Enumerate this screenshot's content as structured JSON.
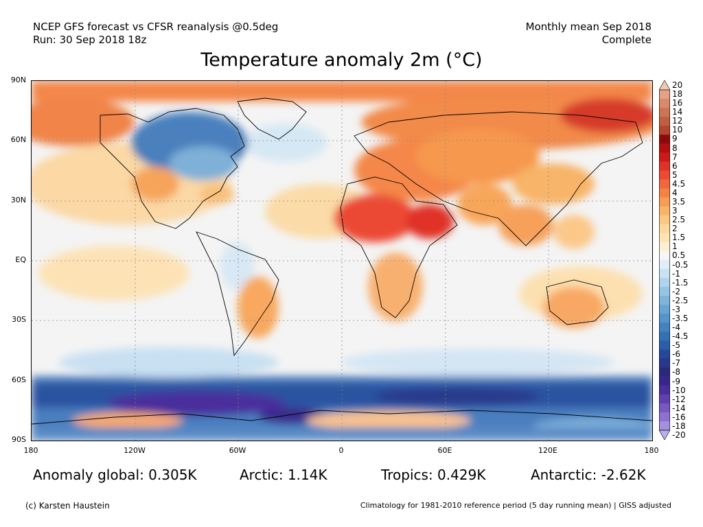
{
  "header": {
    "line1_left": "NCEP GFS forecast vs CFSR reanalysis @0.5deg",
    "line2_left": "Run: 30 Sep 2018 18z",
    "line1_right": "Monthly mean Sep 2018",
    "line2_right": "Complete"
  },
  "title": "Temperature anomaly 2m (°C)",
  "axes": {
    "lat_labels": [
      "90N",
      "60N",
      "30N",
      "EQ",
      "30S",
      "60S",
      "90S"
    ],
    "lon_labels": [
      "180",
      "120W",
      "60W",
      "0",
      "60E",
      "120E",
      "180"
    ]
  },
  "colorbar": {
    "labels": [
      "20",
      "18",
      "16",
      "14",
      "12",
      "10",
      "9",
      "8",
      "7",
      "6",
      "5",
      "4.5",
      "4",
      "3.5",
      "3",
      "2.5",
      "2",
      "1.5",
      "1",
      "0.5",
      "-0.5",
      "-1",
      "-1.5",
      "-2",
      "-2.5",
      "-3",
      "-3.5",
      "-4",
      "-4.5",
      "-5",
      "-6",
      "-7",
      "-8",
      "-9",
      "-10",
      "-12",
      "-14",
      "-16",
      "-18",
      "-20"
    ],
    "colors": [
      "#f0c8b0",
      "#e2a286",
      "#d88a6c",
      "#cc7556",
      "#c05e42",
      "#b04630",
      "#8e0a0a",
      "#b21010",
      "#cc1a18",
      "#e03228",
      "#ec4a34",
      "#f2663c",
      "#f48244",
      "#f69c54",
      "#f8b468",
      "#fac884",
      "#fcd89c",
      "#fde4b4",
      "#fdf0d2",
      "#f6f6f6",
      "#e0eef8",
      "#c8e2f2",
      "#b0d4ec",
      "#96c4e4",
      "#7eb4da",
      "#68a4d2",
      "#5494c8",
      "#4282be",
      "#3470b2",
      "#2a5ea8",
      "#26489a",
      "#28388a",
      "#2a2a7c",
      "#38268a",
      "#4a2e9c",
      "#6040ae",
      "#7658c0",
      "#8c72d0",
      "#a490de",
      "#bcaeea"
    ]
  },
  "stats": {
    "global": "Anomaly global: 0.305K",
    "arctic": "Arctic: 1.14K",
    "tropics": "Tropics: 0.429K",
    "antarctic": "Antarctic: -2.62K"
  },
  "footer": {
    "credit": "(c) Karsten Haustein",
    "climatology": "Climatology for 1981-2010 reference period (5 day running mean) | GISS adjusted"
  }
}
